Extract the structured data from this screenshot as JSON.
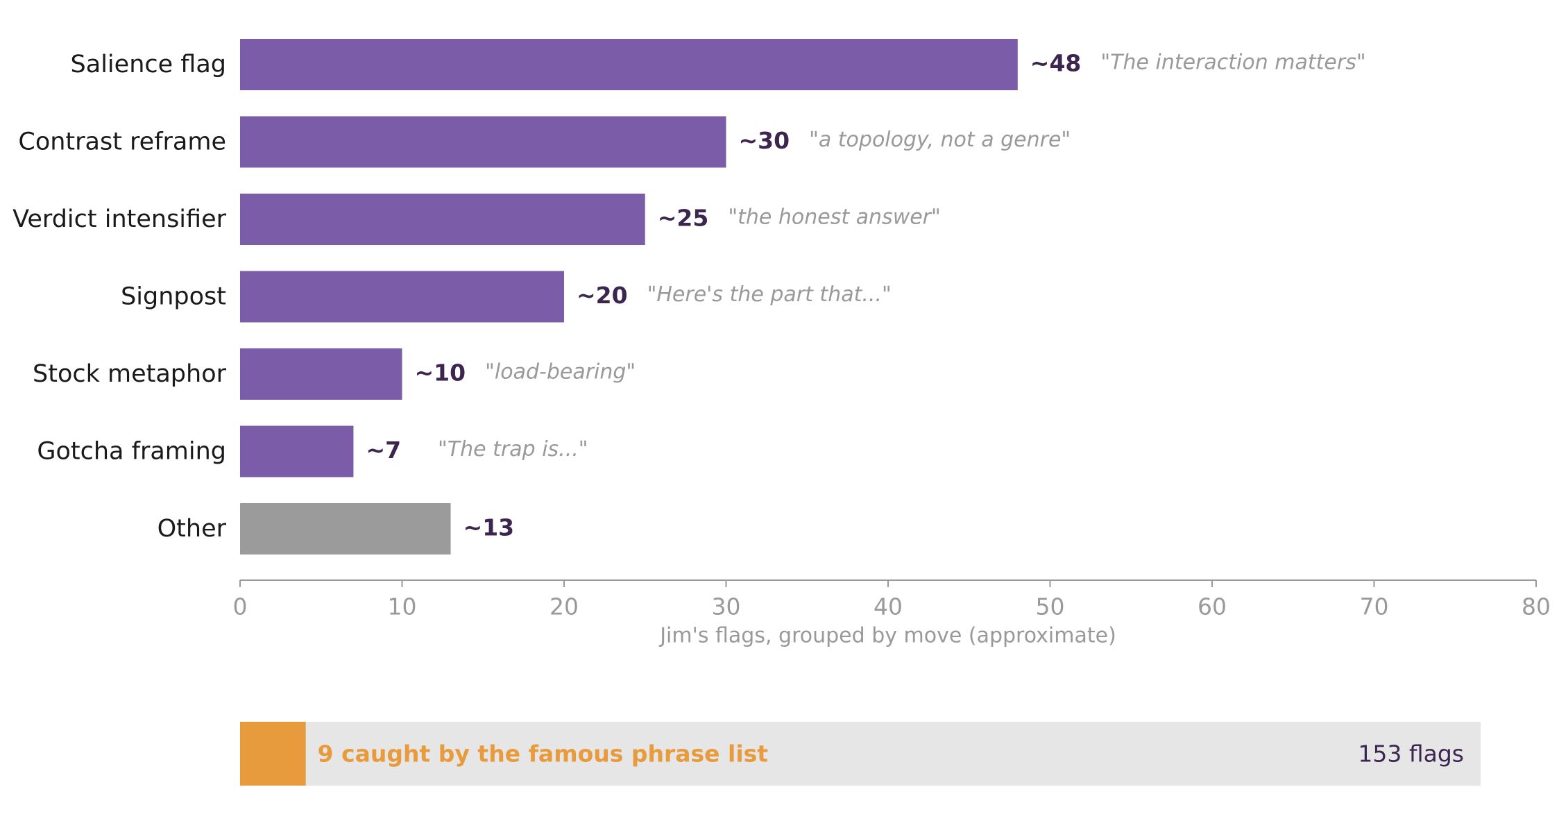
{
  "colors": {
    "bar": "#7b5ca8",
    "other_bar": "#9b9b9b",
    "value_label": "#3c2650",
    "quote": "#999999",
    "category_label": "#1a1a1a",
    "axis": "#999999",
    "caught": "#e89b3d",
    "track": "#e6e6e6",
    "total_text": "#3c2650"
  },
  "chart_data": [
    {
      "type": "bar",
      "orientation": "horizontal",
      "categories": [
        "Salience flag",
        "Contrast reframe",
        "Verdict intensifier",
        "Signpost",
        "Stock metaphor",
        "Gotcha framing",
        "Other"
      ],
      "values": [
        48,
        30,
        25,
        20,
        10,
        7,
        13
      ],
      "value_labels": [
        "~48",
        "~30",
        "~25",
        "~20",
        "~10",
        "~7",
        "~13"
      ],
      "quotes": [
        "\"The interaction matters\"",
        "\"a topology, not a genre\"",
        "\"the honest answer\"",
        "\"Here's the part that...\"",
        "\"load-bearing\"",
        "\"The trap is...\"",
        ""
      ],
      "bar_colors": [
        "#7b5ca8",
        "#7b5ca8",
        "#7b5ca8",
        "#7b5ca8",
        "#7b5ca8",
        "#7b5ca8",
        "#9b9b9b"
      ],
      "xlabel": "Jim's flags, grouped by move (approximate)",
      "xlim": [
        0,
        80
      ],
      "xticks": [
        "0",
        "10",
        "20",
        "30",
        "40",
        "50",
        "60",
        "70",
        "80"
      ],
      "grid": false
    },
    {
      "type": "bar",
      "orientation": "horizontal",
      "stacked": true,
      "total": 153,
      "caught": 9,
      "caught_label": "9 caught by the famous phrase list",
      "total_label": "153 flags"
    }
  ]
}
